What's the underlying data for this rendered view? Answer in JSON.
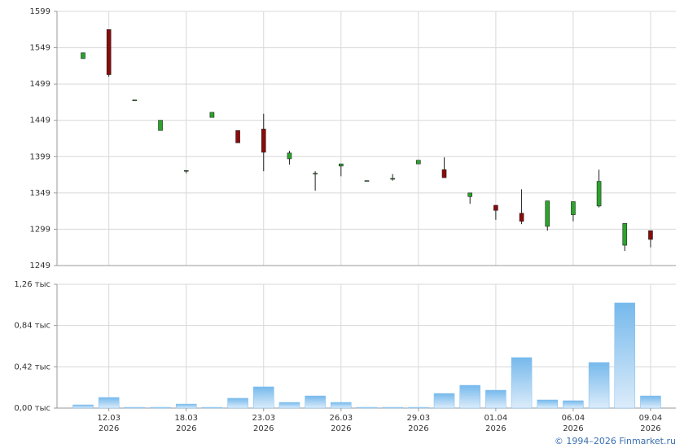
{
  "chart_data": [
    {
      "type": "candlestick",
      "up_color": "#2aa52a",
      "down_color": "#8b0a0a",
      "grid": true,
      "open": [
        1534,
        1574,
        1477,
        1435,
        1380,
        1453,
        1435,
        1437,
        1396,
        1376,
        1386,
        1366,
        1369,
        1389,
        1381,
        1344,
        1332,
        1321,
        1303,
        1319,
        1331,
        1277,
        1297
      ],
      "high": [
        1542,
        1574,
        1477,
        1449,
        1380,
        1460,
        1435,
        1458,
        1407,
        1379,
        1389,
        1366,
        1375,
        1394,
        1398,
        1349,
        1332,
        1354,
        1338,
        1337,
        1381,
        1307,
        1297
      ],
      "low": [
        1534,
        1509,
        1476,
        1435,
        1376,
        1453,
        1418,
        1379,
        1388,
        1352,
        1372,
        1366,
        1366,
        1389,
        1370,
        1334,
        1312,
        1306,
        1297,
        1310,
        1329,
        1269,
        1274
      ],
      "close": [
        1542,
        1512,
        1477,
        1449,
        1380,
        1460,
        1418,
        1405,
        1404,
        1376,
        1389,
        1366,
        1369,
        1394,
        1370,
        1349,
        1325,
        1310,
        1338,
        1337,
        1365,
        1307,
        1285
      ],
      "ylim": [
        1249,
        1599
      ],
      "yticks": [
        1249,
        1299,
        1349,
        1399,
        1449,
        1499,
        1549,
        1599
      ]
    },
    {
      "type": "bar",
      "color": "#7dbdee",
      "grid": true,
      "categories": [
        null,
        {
          "date": "12.03",
          "year": "2026"
        },
        null,
        null,
        {
          "date": "18.03",
          "year": "2026"
        },
        null,
        null,
        {
          "date": "23.03",
          "year": "2026"
        },
        null,
        null,
        {
          "date": "26.03",
          "year": "2026"
        },
        null,
        null,
        {
          "date": "29.03",
          "year": "2026"
        },
        null,
        null,
        {
          "date": "01.04",
          "year": "2026"
        },
        null,
        null,
        {
          "date": "06.04",
          "year": "2026"
        },
        null,
        null,
        {
          "date": "09.04",
          "year": "2026"
        }
      ],
      "values": [
        0.033,
        0.108,
        0.008,
        0.008,
        0.041,
        0.008,
        0.1,
        0.216,
        0.058,
        0.124,
        0.058,
        0.008,
        0.008,
        0.008,
        0.149,
        0.232,
        0.182,
        0.514,
        0.083,
        0.075,
        0.464,
        1.07,
        0.124
      ],
      "ylim": [
        0,
        1.26
      ],
      "yticks": [
        {
          "value": 0,
          "label": "0,00 тыс"
        },
        {
          "value": 0.42,
          "label": "0,42 тыс"
        },
        {
          "value": 0.84,
          "label": "0,84 тыс"
        },
        {
          "value": 1.26,
          "label": "1,26 тыс"
        }
      ]
    }
  ],
  "footer": "© 1994–2026 Finmarket.ru"
}
